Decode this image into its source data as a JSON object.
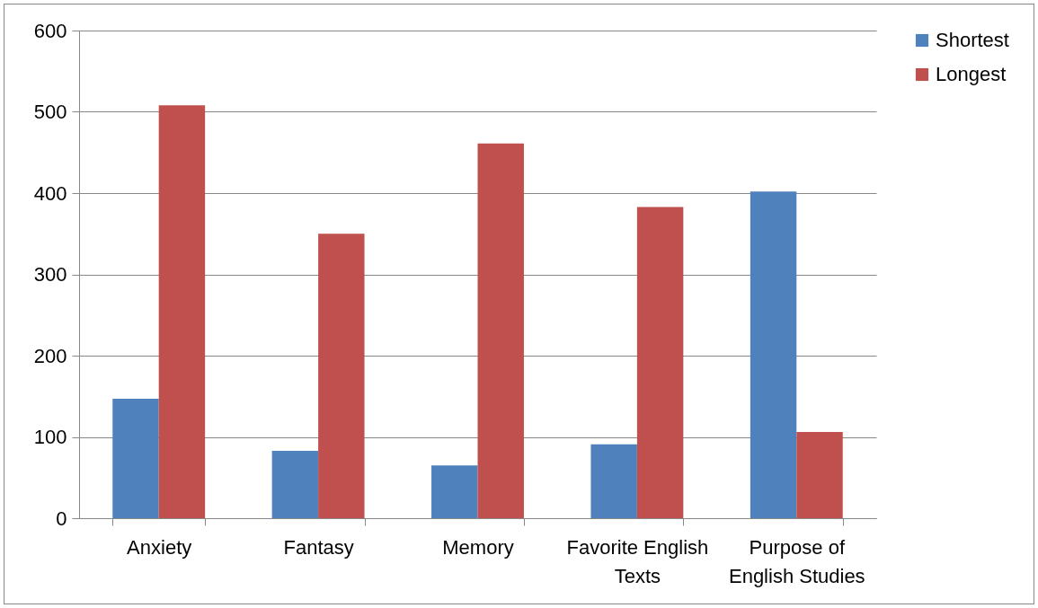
{
  "chart_data": {
    "type": "bar",
    "categories": [
      "Anxiety",
      "Fantasy",
      "Memory",
      "Favorite English Texts",
      "Purpose of English Studies"
    ],
    "series": [
      {
        "name": "Shortest",
        "color": "#4f81bd",
        "values": [
          147,
          83,
          65,
          91,
          402
        ]
      },
      {
        "name": "Longest",
        "color": "#c0504d",
        "values": [
          508,
          350,
          461,
          383,
          106
        ]
      }
    ],
    "ylim": [
      0,
      600
    ],
    "yticks": [
      0,
      100,
      200,
      300,
      400,
      500,
      600
    ],
    "grid": "y",
    "legend": "right"
  }
}
